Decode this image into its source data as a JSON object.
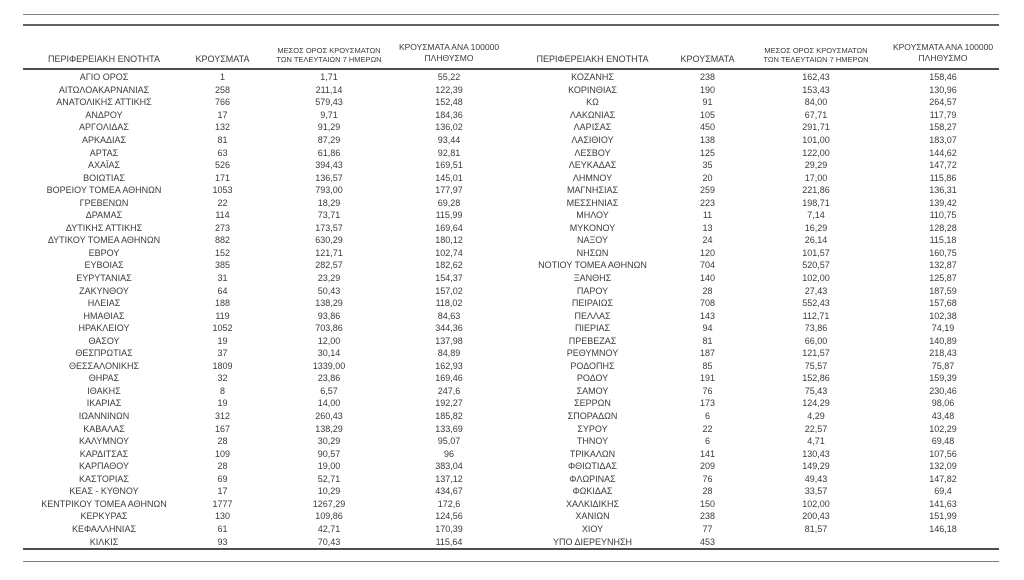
{
  "document": {
    "kind": "regional-covid-cases-table",
    "colors": {
      "text": "#3b3b3b",
      "rule_dark": "#4d4d4d",
      "rule_light": "#7d7d7d"
    }
  },
  "table": {
    "header": {
      "region": "ΠΕΡΙΦΕΡΕΙΑΚΗ ΕΝΟΤΗΤΑ",
      "cases": "ΚΡΟΥΣΜΑΤΑ",
      "avg7_line1": "ΜΕΣΟΣ ΟΡΟΣ ΚΡΟΥΣΜΑΤΩΝ",
      "avg7_line2": "ΤΩΝ ΤΕΛΕΥΤΑΙΩΝ 7 ΗΜΕΡΩΝ",
      "per100k_line1": "ΚΡΟΥΣΜΑΤΑ ΑΝΑ 100000",
      "per100k_line2": "ΠΛΗΘΥΣΜΟ"
    },
    "left_rows": [
      [
        "ΑΓΙΟ ΟΡΟΣ",
        "1",
        "1,71",
        "55,22"
      ],
      [
        "ΑΙΤΩΛΟΑΚΑΡΝΑΝΙΑΣ",
        "258",
        "211,14",
        "122,39"
      ],
      [
        "ΑΝΑΤΟΛΙΚΗΣ ΑΤΤΙΚΗΣ",
        "766",
        "579,43",
        "152,48"
      ],
      [
        "ΑΝΔΡΟΥ",
        "17",
        "9,71",
        "184,36"
      ],
      [
        "ΑΡΓΟΛΙΔΑΣ",
        "132",
        "91,29",
        "136,02"
      ],
      [
        "ΑΡΚΑΔΙΑΣ",
        "81",
        "87,29",
        "93,44"
      ],
      [
        "ΑΡΤΑΣ",
        "63",
        "61,86",
        "92,81"
      ],
      [
        "ΑΧΑΪΑΣ",
        "526",
        "394,43",
        "169,51"
      ],
      [
        "ΒΟΙΩΤΙΑΣ",
        "171",
        "136,57",
        "145,01"
      ],
      [
        "ΒΟΡΕΙΟΥ ΤΟΜΕΑ ΑΘΗΝΩΝ",
        "1053",
        "793,00",
        "177,97"
      ],
      [
        "ΓΡΕΒΕΝΩΝ",
        "22",
        "18,29",
        "69,28"
      ],
      [
        "ΔΡΑΜΑΣ",
        "114",
        "73,71",
        "115,99"
      ],
      [
        "ΔΥΤΙΚΗΣ ΑΤΤΙΚΗΣ",
        "273",
        "173,57",
        "169,64"
      ],
      [
        "ΔΥΤΙΚΟΥ ΤΟΜΕΑ ΑΘΗΝΩΝ",
        "882",
        "630,29",
        "180,12"
      ],
      [
        "ΕΒΡΟΥ",
        "152",
        "121,71",
        "102,74"
      ],
      [
        "ΕΥΒΟΙΑΣ",
        "385",
        "282,57",
        "182,62"
      ],
      [
        "ΕΥΡΥΤΑΝΙΑΣ",
        "31",
        "23,29",
        "154,37"
      ],
      [
        "ΖΑΚΥΝΘΟΥ",
        "64",
        "50,43",
        "157,02"
      ],
      [
        "ΗΛΕΙΑΣ",
        "188",
        "138,29",
        "118,02"
      ],
      [
        "ΗΜΑΘΙΑΣ",
        "119",
        "93,86",
        "84,63"
      ],
      [
        "ΗΡΑΚΛΕΙΟΥ",
        "1052",
        "703,86",
        "344,36"
      ],
      [
        "ΘΑΣΟΥ",
        "19",
        "12,00",
        "137,98"
      ],
      [
        "ΘΕΣΠΡΩΤΙΑΣ",
        "37",
        "30,14",
        "84,89"
      ],
      [
        "ΘΕΣΣΑΛΟΝΙΚΗΣ",
        "1809",
        "1339,00",
        "162,93"
      ],
      [
        "ΘΗΡΑΣ",
        "32",
        "23,86",
        "169,46"
      ],
      [
        "ΙΘΑΚΗΣ",
        "8",
        "6,57",
        "247,6"
      ],
      [
        "ΙΚΑΡΙΑΣ",
        "19",
        "14,00",
        "192,27"
      ],
      [
        "ΙΩΑΝΝΙΝΩΝ",
        "312",
        "260,43",
        "185,82"
      ],
      [
        "ΚΑΒΑΛΑΣ",
        "167",
        "138,29",
        "133,69"
      ],
      [
        "ΚΑΛΥΜΝΟΥ",
        "28",
        "30,29",
        "95,07"
      ],
      [
        "ΚΑΡΔΙΤΣΑΣ",
        "109",
        "90,57",
        "96"
      ],
      [
        "ΚΑΡΠΑΘΟΥ",
        "28",
        "19,00",
        "383,04"
      ],
      [
        "ΚΑΣΤΟΡΙΑΣ",
        "69",
        "52,71",
        "137,12"
      ],
      [
        "ΚΕΑΣ - ΚΥΘΝΟΥ",
        "17",
        "10,29",
        "434,67"
      ],
      [
        "ΚΕΝΤΡΙΚΟΥ ΤΟΜΕΑ ΑΘΗΝΩΝ",
        "1777",
        "1267,29",
        "172,6"
      ],
      [
        "ΚΕΡΚΥΡΑΣ",
        "130",
        "109,86",
        "124,56"
      ],
      [
        "ΚΕΦΑΛΛΗΝΙΑΣ",
        "61",
        "42,71",
        "170,39"
      ],
      [
        "ΚΙΛΚΙΣ",
        "93",
        "70,43",
        "115,64"
      ]
    ],
    "right_rows": [
      [
        "ΚΟΖΑΝΗΣ",
        "238",
        "162,43",
        "158,46"
      ],
      [
        "ΚΟΡΙΝΘΙΑΣ",
        "190",
        "153,43",
        "130,96"
      ],
      [
        "ΚΩ",
        "91",
        "84,00",
        "264,57"
      ],
      [
        "ΛΑΚΩΝΙΑΣ",
        "105",
        "67,71",
        "117,79"
      ],
      [
        "ΛΑΡΙΣΑΣ",
        "450",
        "291,71",
        "158,27"
      ],
      [
        "ΛΑΣΙΘΙΟΥ",
        "138",
        "101,00",
        "183,07"
      ],
      [
        "ΛΕΣΒΟΥ",
        "125",
        "122,00",
        "144,62"
      ],
      [
        "ΛΕΥΚΑΔΑΣ",
        "35",
        "29,29",
        "147,72"
      ],
      [
        "ΛΗΜΝΟΥ",
        "20",
        "17,00",
        "115,86"
      ],
      [
        "ΜΑΓΝΗΣΙΑΣ",
        "259",
        "221,86",
        "136,31"
      ],
      [
        "ΜΕΣΣΗΝΙΑΣ",
        "223",
        "198,71",
        "139,42"
      ],
      [
        "ΜΗΛΟΥ",
        "11",
        "7,14",
        "110,75"
      ],
      [
        "ΜΥΚΟΝΟΥ",
        "13",
        "16,29",
        "128,28"
      ],
      [
        "ΝΑΞΟΥ",
        "24",
        "26,14",
        "115,18"
      ],
      [
        "ΝΗΣΩΝ",
        "120",
        "101,57",
        "160,75"
      ],
      [
        "ΝΟΤΙΟΥ ΤΟΜΕΑ ΑΘΗΝΩΝ",
        "704",
        "520,57",
        "132,87"
      ],
      [
        "ΞΑΝΘΗΣ",
        "140",
        "102,00",
        "125,87"
      ],
      [
        "ΠΑΡΟΥ",
        "28",
        "27,43",
        "187,59"
      ],
      [
        "ΠΕΙΡΑΙΩΣ",
        "708",
        "552,43",
        "157,68"
      ],
      [
        "ΠΕΛΛΑΣ",
        "143",
        "112,71",
        "102,38"
      ],
      [
        "ΠΙΕΡΙΑΣ",
        "94",
        "73,86",
        "74,19"
      ],
      [
        "ΠΡΕΒΕΖΑΣ",
        "81",
        "66,00",
        "140,89"
      ],
      [
        "ΡΕΘΥΜΝΟΥ",
        "187",
        "121,57",
        "218,43"
      ],
      [
        "ΡΟΔΟΠΗΣ",
        "85",
        "75,57",
        "75,87"
      ],
      [
        "ΡΟΔΟΥ",
        "191",
        "152,86",
        "159,39"
      ],
      [
        "ΣΑΜΟΥ",
        "76",
        "75,43",
        "230,46"
      ],
      [
        "ΣΕΡΡΩΝ",
        "173",
        "124,29",
        "98,06"
      ],
      [
        "ΣΠΟΡΑΔΩΝ",
        "6",
        "4,29",
        "43,48"
      ],
      [
        "ΣΥΡΟΥ",
        "22",
        "22,57",
        "102,29"
      ],
      [
        "ΤΗΝΟΥ",
        "6",
        "4,71",
        "69,48"
      ],
      [
        "ΤΡΙΚΑΛΩΝ",
        "141",
        "130,43",
        "107,56"
      ],
      [
        "ΦΘΙΩΤΙΔΑΣ",
        "209",
        "149,29",
        "132,09"
      ],
      [
        "ΦΛΩΡΙΝΑΣ",
        "76",
        "49,43",
        "147,82"
      ],
      [
        "ΦΩΚΙΔΑΣ",
        "28",
        "33,57",
        "69,4"
      ],
      [
        "ΧΑΛΚΙΔΙΚΗΣ",
        "150",
        "102,00",
        "141,63"
      ],
      [
        "ΧΑΝΙΩΝ",
        "238",
        "200,43",
        "151,99"
      ],
      [
        "ΧΙΟΥ",
        "77",
        "81,57",
        "146,18"
      ],
      [
        "ΥΠΟ ΔΙΕΡΕΥΝΗΣΗ",
        "453",
        "",
        ""
      ]
    ]
  }
}
